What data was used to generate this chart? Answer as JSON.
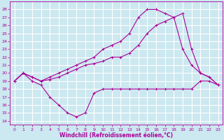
{
  "xlabel": "Windchill (Refroidissement éolien,°C)",
  "x_ticks": [
    0,
    1,
    2,
    3,
    4,
    5,
    6,
    7,
    8,
    9,
    10,
    11,
    12,
    13,
    14,
    15,
    16,
    17,
    18,
    19,
    20,
    21,
    22,
    23
  ],
  "y_ticks": [
    14,
    15,
    16,
    17,
    18,
    19,
    20,
    21,
    22,
    23,
    24,
    25,
    26,
    27,
    28
  ],
  "ylim": [
    13.5,
    29.0
  ],
  "xlim": [
    -0.5,
    23.5
  ],
  "bg_color": "#cce8f0",
  "line_color": "#aa0099",
  "grid_color": "#ffffff",
  "line1_x": [
    0,
    1,
    2,
    3,
    4,
    5,
    6,
    7,
    8,
    9,
    10,
    11,
    12,
    13,
    14,
    15,
    16,
    17,
    18,
    19,
    20,
    21,
    22,
    23
  ],
  "line1_y": [
    19,
    20,
    19,
    18.5,
    17,
    16,
    15,
    14.5,
    15,
    17.5,
    18,
    18,
    18,
    18,
    18,
    18,
    18,
    18,
    18,
    18,
    18,
    19,
    19,
    18.5
  ],
  "line2_x": [
    0,
    1,
    2,
    3,
    4,
    5,
    6,
    7,
    8,
    9,
    10,
    11,
    12,
    13,
    14,
    15,
    16,
    17,
    18,
    19,
    20,
    21,
    22,
    23
  ],
  "line2_y": [
    19,
    20,
    19.5,
    19,
    19.2,
    19.5,
    20,
    20.5,
    21,
    21.2,
    21.5,
    22,
    22,
    22.5,
    23.5,
    25,
    26,
    26.5,
    27,
    27.5,
    23,
    20,
    19.5,
    18.5
  ],
  "line3_x": [
    0,
    1,
    2,
    3,
    4,
    5,
    6,
    7,
    8,
    9,
    10,
    11,
    12,
    13,
    14,
    15,
    16,
    17,
    18,
    19,
    20,
    21,
    22,
    23
  ],
  "line3_y": [
    19,
    20,
    19.5,
    19,
    19.5,
    20,
    20.5,
    21,
    21.5,
    22,
    23,
    23.5,
    24,
    25,
    27,
    28,
    28,
    27.5,
    27,
    23,
    21,
    20,
    19.5,
    18.5
  ],
  "tick_fontsize": 4.5,
  "xlabel_fontsize": 5.5
}
